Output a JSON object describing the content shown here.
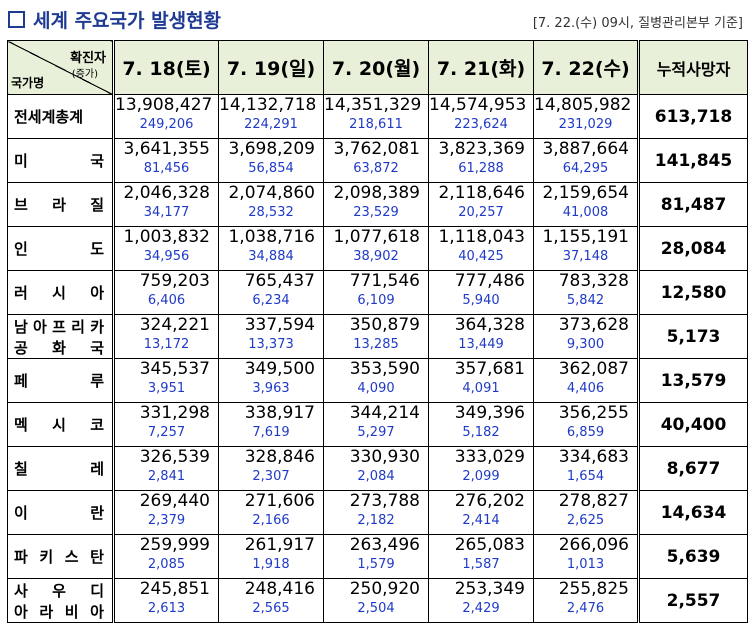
{
  "title": "세계 주요국가 발생현황",
  "source": "[7. 22.(수) 09시, 질병관리본부 기준]",
  "header": {
    "corner_top": "확진자",
    "corner_sub": "(증가)",
    "corner_bottom": "국가명",
    "dates": [
      "7. 18(토)",
      "7. 19(일)",
      "7. 20(월)",
      "7. 21(화)",
      "7. 22(수)"
    ],
    "total_deaths": "누적사망자"
  },
  "rows": [
    {
      "name": [
        "전세계총계"
      ],
      "cases": [
        "13,908,427",
        "14,132,718",
        "14,351,329",
        "14,574,953",
        "14,805,982"
      ],
      "increase": [
        "249,206",
        "224,291",
        "218,611",
        "223,624",
        "231,029"
      ],
      "deaths": "613,718"
    },
    {
      "name": [
        "미",
        "국"
      ],
      "cases": [
        "3,641,355",
        "3,698,209",
        "3,762,081",
        "3,823,369",
        "3,887,664"
      ],
      "increase": [
        "81,456",
        "56,854",
        "63,872",
        "61,288",
        "64,295"
      ],
      "deaths": "141,845"
    },
    {
      "name": [
        "브",
        "라",
        "질"
      ],
      "cases": [
        "2,046,328",
        "2,074,860",
        "2,098,389",
        "2,118,646",
        "2,159,654"
      ],
      "increase": [
        "34,177",
        "28,532",
        "23,529",
        "20,257",
        "41,008"
      ],
      "deaths": "81,487"
    },
    {
      "name": [
        "인",
        "도"
      ],
      "cases": [
        "1,003,832",
        "1,038,716",
        "1,077,618",
        "1,118,043",
        "1,155,191"
      ],
      "increase": [
        "34,956",
        "34,884",
        "38,902",
        "40,425",
        "37,148"
      ],
      "deaths": "28,084"
    },
    {
      "name": [
        "러",
        "시",
        "아"
      ],
      "cases": [
        "759,203",
        "765,437",
        "771,546",
        "777,486",
        "783,328"
      ],
      "increase": [
        "6,406",
        "6,234",
        "6,109",
        "5,940",
        "5,842"
      ],
      "deaths": "12,580"
    },
    {
      "name2": [
        "남아프리카",
        "공화국"
      ],
      "cases": [
        "324,221",
        "337,594",
        "350,879",
        "364,328",
        "373,628"
      ],
      "increase": [
        "13,172",
        "13,373",
        "13,285",
        "13,449",
        "9,300"
      ],
      "deaths": "5,173"
    },
    {
      "name": [
        "페",
        "루"
      ],
      "cases": [
        "345,537",
        "349,500",
        "353,590",
        "357,681",
        "362,087"
      ],
      "increase": [
        "3,951",
        "3,963",
        "4,090",
        "4,091",
        "4,406"
      ],
      "deaths": "13,579"
    },
    {
      "name": [
        "멕",
        "시",
        "코"
      ],
      "cases": [
        "331,298",
        "338,917",
        "344,214",
        "349,396",
        "356,255"
      ],
      "increase": [
        "7,257",
        "7,619",
        "5,297",
        "5,182",
        "6,859"
      ],
      "deaths": "40,400"
    },
    {
      "name": [
        "칠",
        "레"
      ],
      "cases": [
        "326,539",
        "328,846",
        "330,930",
        "333,029",
        "334,683"
      ],
      "increase": [
        "2,841",
        "2,307",
        "2,084",
        "2,099",
        "1,654"
      ],
      "deaths": "8,677"
    },
    {
      "name": [
        "이",
        "란"
      ],
      "cases": [
        "269,440",
        "271,606",
        "273,788",
        "276,202",
        "278,827"
      ],
      "increase": [
        "2,379",
        "2,166",
        "2,182",
        "2,414",
        "2,625"
      ],
      "deaths": "14,634"
    },
    {
      "name": [
        "파",
        "키",
        "스",
        "탄"
      ],
      "cases": [
        "259,999",
        "261,917",
        "263,496",
        "265,083",
        "266,096"
      ],
      "increase": [
        "2,085",
        "1,918",
        "1,579",
        "1,587",
        "1,013"
      ],
      "deaths": "5,639"
    },
    {
      "name2": [
        "사우디",
        "아라비아"
      ],
      "cases": [
        "245,851",
        "248,416",
        "250,920",
        "253,349",
        "255,825"
      ],
      "increase": [
        "2,613",
        "2,565",
        "2,504",
        "2,429",
        "2,476"
      ],
      "deaths": "2,557"
    }
  ]
}
